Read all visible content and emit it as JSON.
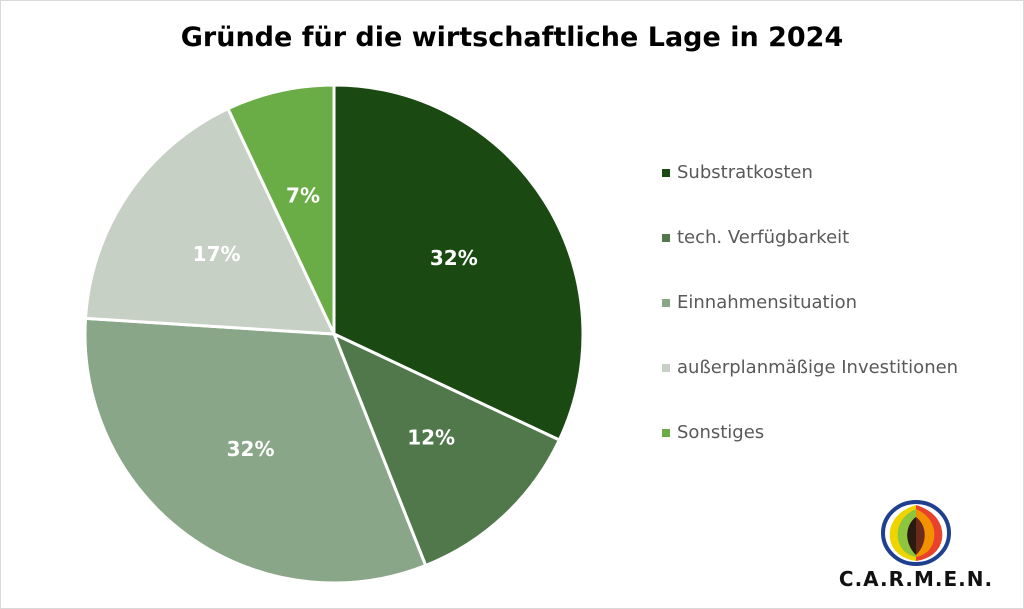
{
  "chart_data": {
    "type": "pie",
    "title": "Gründe für die wirtschaftliche Lage in 2024",
    "categories": [
      "Substratkosten",
      "tech. Verfügbarkeit",
      "Einnahmensituation",
      "außerplanmäßige Investitionen",
      "Sonstiges"
    ],
    "values": [
      32,
      12,
      32,
      17,
      7
    ],
    "labels": [
      "32%",
      "12%",
      "32%",
      "17%",
      "7%"
    ],
    "colors": [
      "#1a4a12",
      "#50784a",
      "#8aa688",
      "#c7d0c5",
      "#6aac45"
    ],
    "label_colors": [
      "#ffffff",
      "#ffffff",
      "#ffffff",
      "#ffffff",
      "#ffffff"
    ],
    "legend_position": "right"
  },
  "logo": {
    "text": "C.A.R.M.E.N."
  }
}
